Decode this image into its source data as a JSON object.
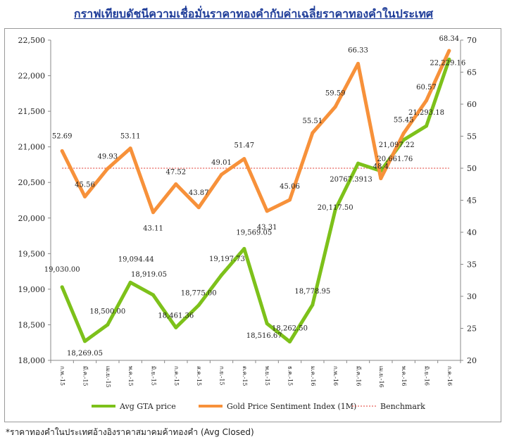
{
  "title": "กราฟเทียบดัชนีความเชื่อมั่นราคาทองคำกับค่าเฉลี่ยราคาทองคำในประเทศ",
  "footnote": "*ราคาทองคำในประเทศอ้างอิงราคาสมาคมค้าทองคำ (Avg Closed)",
  "chart_data": {
    "type": "line",
    "title": "กราฟเทียบดัชนีความเชื่อมั่นราคาทองคำกับค่าเฉลี่ยราคาทองคำในประเทศ",
    "categories": [
      "ก.พ.-15",
      "มี.ค.-15",
      "เม.ย.-15",
      "พ.ค.-15",
      "มิ.ย.-15",
      "ก.ค.-15",
      "ส.ค.-15",
      "ก.ย.-15",
      "ต.ค.-15",
      "พ.ย.-15",
      "ธ.ค.-15",
      "ม.ค.-16",
      "ก.พ.-16",
      "มี.ค.-16",
      "เม.ย.-16",
      "พ.ค.-16",
      "มิ.ย.-16",
      "ก.ค.-16"
    ],
    "y_left": {
      "min": 18000,
      "max": 22500,
      "ticks": [
        "18,000",
        "18,500",
        "19,000",
        "19,500",
        "20,000",
        "20,500",
        "21,000",
        "21,500",
        "22,000",
        "22,500"
      ]
    },
    "y_right": {
      "min": 20,
      "max": 70,
      "ticks": [
        "20",
        "25",
        "30",
        "35",
        "40",
        "45",
        "50",
        "55",
        "60",
        "65",
        "70"
      ]
    },
    "series": [
      {
        "name": "Avg GTA price",
        "axis": "left",
        "color": "#7dc11a",
        "values": [
          19030.0,
          18269.05,
          18500.0,
          19094.44,
          18919.05,
          18461.36,
          18775.0,
          19197.73,
          19569.05,
          18516.67,
          18262.5,
          18778.95,
          20117.5,
          20767.3913,
          20661.76,
          21097.22,
          21293.18,
          22229.16
        ],
        "labels": [
          "19,030.00",
          "18,269.05",
          "18,500.00",
          "19,094.44",
          "18,919.05",
          "18,461.36",
          "18,775.00",
          "19,197.73",
          "19,569.05",
          "18,516.67",
          "18,262.50",
          "18,778.95",
          "20,117.50",
          "20767.3913",
          "20,661.76",
          "21,097.22",
          "21,293.18",
          "22,229.16"
        ]
      },
      {
        "name": "Gold Price Sentiment Index (1M)",
        "axis": "right",
        "color": "#f7913a",
        "values": [
          52.69,
          45.56,
          49.93,
          53.11,
          43.11,
          47.52,
          43.87,
          49.01,
          51.47,
          43.31,
          45.06,
          55.51,
          59.59,
          66.33,
          48.4,
          55.45,
          60.57,
          68.34
        ],
        "labels": [
          "52.69",
          "45.56",
          "49.93",
          "53.11",
          "43.11",
          "47.52",
          "43.87",
          "49.01",
          "51.47",
          "43.31",
          "45.06",
          "55.51",
          "59.59",
          "66.33",
          "48.4",
          "55.45",
          "60.57",
          "68.34"
        ]
      }
    ],
    "benchmark": {
      "name": "Benchmark",
      "axis": "right",
      "value": 50,
      "color": "#e03a2f"
    },
    "legend_position": "bottom",
    "grid": false
  }
}
